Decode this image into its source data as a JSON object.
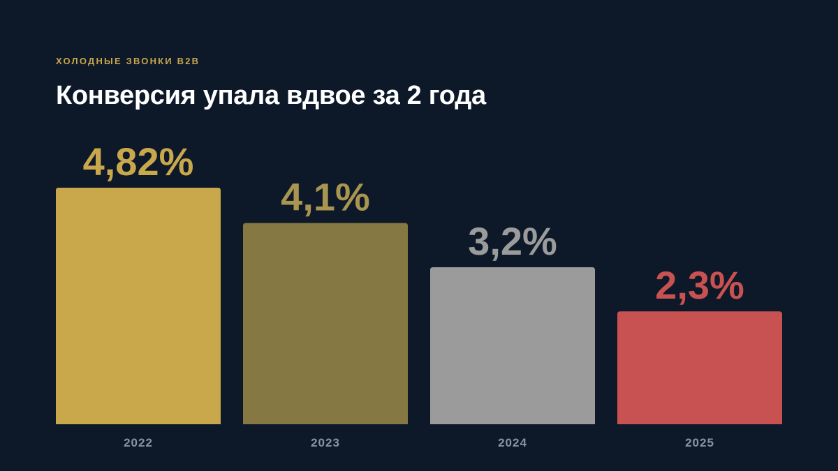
{
  "header": {
    "eyebrow": "ХОЛОДНЫЕ ЗВОНКИ B2B",
    "title": "Конверсия упала вдвое за 2 года"
  },
  "chart_data": {
    "type": "bar",
    "title": "Конверсия упала вдвое за 2 года",
    "subtitle": "ХОЛОДНЫЕ ЗВОНКИ B2B",
    "categories": [
      "2022",
      "2023",
      "2024",
      "2025"
    ],
    "values": [
      4.82,
      4.1,
      3.2,
      2.3
    ],
    "value_labels": [
      "4,82%",
      "4,1%",
      "3,2%",
      "2,3%"
    ],
    "bar_colors": [
      "#c9a84c",
      "#857842",
      "#9b9b9b",
      "#c85252"
    ],
    "label_colors": [
      "#c9a84c",
      "#a89550",
      "#9b9b9b",
      "#c85252"
    ],
    "xlabel": "",
    "ylabel": "",
    "ylim": [
      0,
      4.82
    ],
    "grid": false,
    "legend": "none"
  }
}
